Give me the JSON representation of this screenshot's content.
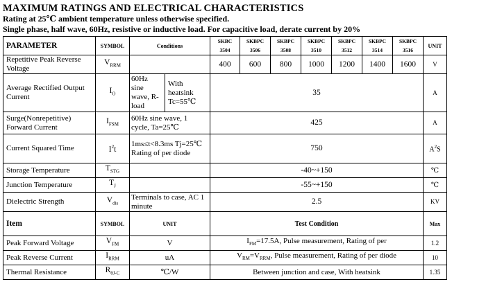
{
  "header": {
    "title": "MAXIMUM RATINGS AND ELECTRICAL CHARACTERISTICS",
    "subtitle1": "Rating at 25℃  ambient temperature unless otherwise specified.",
    "subtitle2": "Single phase, half wave, 60Hz, resistive or inductive load. For capacitive load, derate current by 20%"
  },
  "table1": {
    "headers": {
      "parameter": "PARAMETER",
      "symbol": "SYMBOL",
      "conditions": "Conditions",
      "unit": "UNIT",
      "models": [
        {
          "l1": "SKBC",
          "l2": "3504"
        },
        {
          "l1": "SKBPC",
          "l2": "3506"
        },
        {
          "l1": "SKBPC",
          "l2": "3508"
        },
        {
          "l1": "SKBPC",
          "l2": "3510"
        },
        {
          "l1": "SKBPC",
          "l2": "3512"
        },
        {
          "l1": "SKBPC",
          "l2": "3514"
        },
        {
          "l1": "SKBPC",
          "l2": "3516"
        }
      ]
    },
    "vrrm": {
      "param": "Repetitive Peak Reverse Voltage",
      "sym_main": "V",
      "sym_sub": "RRM",
      "values": [
        "400",
        "600",
        "800",
        "1000",
        "1200",
        "1400",
        "1600"
      ],
      "unit": "V"
    },
    "io": {
      "param": "Average Rectified Output Current",
      "sym_main": "I",
      "sym_sub": "O",
      "cond_left": "60Hz sine wave, R-load",
      "cond_right": "With heatsink Tc=55℃",
      "value": "35",
      "unit": "A"
    },
    "ifsm": {
      "param": "Surge(Nonrepetitive) Forward Current",
      "sym_main": "I",
      "sym_sub": "FSM",
      "cond": "60Hz sine wave, 1 cycle, Ta=25℃",
      "value": "425",
      "unit": "A"
    },
    "i2t": {
      "param": "Current Squared Time",
      "sym_main": "I",
      "sym_sup": "2",
      "sym_tail": "t",
      "cond": "1ms≤t<8.3ms Tj=25℃ Rating of per diode",
      "value": "750",
      "unit_main": "A",
      "unit_sup": "2",
      "unit_tail": "S"
    },
    "tstg": {
      "param": "Storage Temperature",
      "sym_main": "T",
      "sym_sub": "STG",
      "value": "-40~+150",
      "unit": "℃"
    },
    "tj": {
      "param": "Junction Temperature",
      "sym_main": "T",
      "sym_sub": "J",
      "value": "-55~+150",
      "unit": "℃"
    },
    "vdis": {
      "param": "Dielectric Strength",
      "sym_main": "V",
      "sym_sub": "dis",
      "cond": "Terminals to case, AC 1 minute",
      "value": "2.5",
      "unit": "KV"
    }
  },
  "table2": {
    "headers": {
      "item": "Item",
      "symbol": "SYMBOL",
      "unit": "UNIT",
      "test": "Test Condition",
      "max": "Max"
    },
    "vfm": {
      "item": "Peak Forward Voltage",
      "sym_main": "V",
      "sym_sub": "FM",
      "unit": "V",
      "cond_a": "I",
      "cond_a_sub": "FM",
      "cond_b": "=17.5A, Pulse measurement, Rating of per",
      "max": "1.2"
    },
    "irrm": {
      "item": "Peak Reverse Current",
      "sym_main": "I",
      "sym_sub": "RRM",
      "unit": "uA",
      "cond_a": "V",
      "cond_a_sub": "RM",
      "cond_b": "=V",
      "cond_b_sub": "RRM",
      "cond_c": ", Pulse measurement, Rating of per diode",
      "max": "10"
    },
    "rth": {
      "item": "Thermal Resistance",
      "sym_main": "R",
      "sym_sub": "θJ-C",
      "unit": "℃/W",
      "cond": "Between junction and case, With heatsink",
      "max": "1.35"
    }
  }
}
